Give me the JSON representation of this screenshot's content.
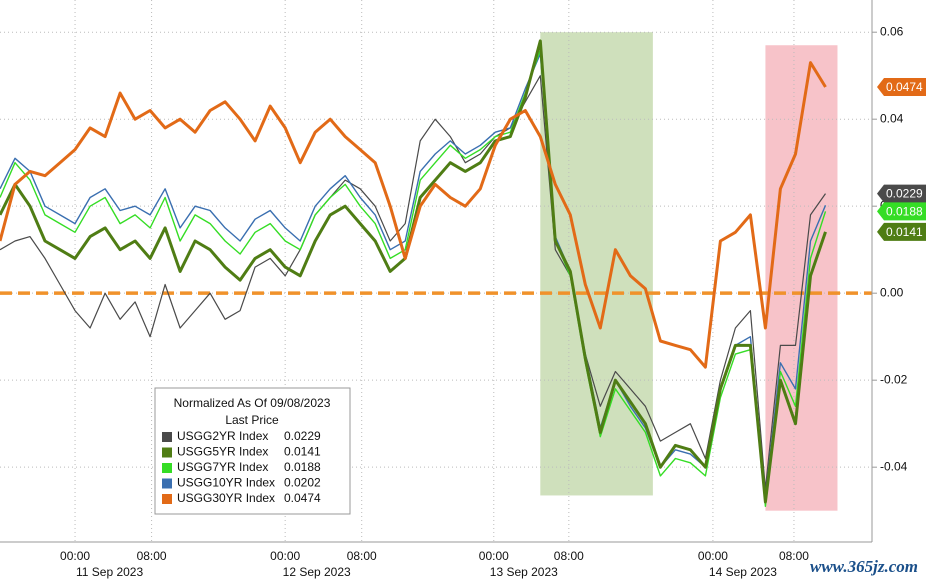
{
  "chart_data": {
    "type": "line",
    "legend_title": "Normalized As Of 09/08/2023",
    "legend_subtitle": "Last Price",
    "watermark": "www.365jz.com",
    "x": [
      0,
      1,
      2,
      3,
      4,
      5,
      6,
      7,
      8,
      9,
      10,
      11,
      12,
      13,
      14,
      15,
      16,
      17,
      18,
      19,
      20,
      21,
      22,
      23,
      24,
      25,
      26,
      27,
      28,
      29,
      30,
      31,
      32,
      33,
      34,
      35,
      36,
      37,
      38,
      39,
      40,
      41,
      42,
      43,
      44,
      45,
      46,
      47,
      48,
      49,
      50,
      51,
      52,
      53,
      54,
      55
    ],
    "xlim": [
      0,
      58.1
    ],
    "xticks": [
      {
        "value": 5,
        "label": "00:00"
      },
      {
        "value": 10.1,
        "label": "08:00"
      },
      {
        "value": 19,
        "label": "00:00"
      },
      {
        "value": 24.1,
        "label": "08:00"
      },
      {
        "value": 32.9,
        "label": "00:00"
      },
      {
        "value": 37.9,
        "label": "08:00"
      },
      {
        "value": 47.5,
        "label": "00:00"
      },
      {
        "value": 52.9,
        "label": "08:00"
      }
    ],
    "date_ticks": [
      {
        "value": 7.3,
        "label": "11 Sep 2023"
      },
      {
        "value": 21.1,
        "label": "12 Sep 2023"
      },
      {
        "value": 34.9,
        "label": "13 Sep 2023"
      },
      {
        "value": 49.5,
        "label": "14 Sep 2023"
      }
    ],
    "ylim": [
      -0.0572,
      0.0674
    ],
    "yticks": [
      0.06,
      0.04,
      0.02,
      {
        "value": 0,
        "label": "0.00"
      },
      -0.02,
      -0.04
    ],
    "grid": true,
    "reference_line": {
      "value": 0,
      "color": "#f0922b"
    },
    "shaded_regions": [
      {
        "xlim": [
          36,
          43.5
        ],
        "ylim": [
          -0.0465,
          0.06
        ],
        "color": "#c7dbb0"
      },
      {
        "xlim": [
          51,
          55.8
        ],
        "ylim": [
          -0.05,
          0.057
        ],
        "color": "#f6b8bf"
      }
    ],
    "series": [
      {
        "name": "USGG2YR Index",
        "color": "#4a4a4a",
        "width": 1.2,
        "tag": true,
        "values": [
          0.01,
          0.012,
          0.013,
          0.008,
          0.002,
          -0.004,
          -0.008,
          0.0,
          -0.006,
          -0.002,
          -0.01,
          0.002,
          -0.008,
          -0.004,
          0.0,
          -0.006,
          -0.004,
          0.006,
          0.008,
          0.004,
          0.01,
          0.018,
          0.022,
          0.026,
          0.024,
          0.02,
          0.012,
          0.016,
          0.035,
          0.04,
          0.036,
          0.03,
          0.032,
          0.036,
          0.038,
          0.044,
          0.05,
          0.01,
          0.004,
          -0.014,
          -0.026,
          -0.018,
          -0.022,
          -0.026,
          -0.034,
          -0.032,
          -0.03,
          -0.038,
          -0.02,
          -0.008,
          -0.004,
          -0.045,
          -0.012,
          -0.012,
          0.018,
          0.0229
        ]
      },
      {
        "name": "USGG5YR Index",
        "color": "#4f7d14",
        "width": 3,
        "tag": true,
        "values": [
          0.018,
          0.025,
          0.02,
          0.012,
          0.01,
          0.008,
          0.013,
          0.015,
          0.01,
          0.012,
          0.008,
          0.015,
          0.005,
          0.012,
          0.01,
          0.006,
          0.003,
          0.008,
          0.01,
          0.006,
          0.004,
          0.012,
          0.018,
          0.02,
          0.016,
          0.012,
          0.005,
          0.008,
          0.022,
          0.026,
          0.03,
          0.028,
          0.03,
          0.035,
          0.036,
          0.045,
          0.058,
          0.012,
          0.005,
          -0.015,
          -0.032,
          -0.02,
          -0.025,
          -0.03,
          -0.04,
          -0.035,
          -0.036,
          -0.04,
          -0.022,
          -0.012,
          -0.012,
          -0.048,
          -0.02,
          -0.03,
          0.004,
          0.0141
        ]
      },
      {
        "name": "USGG7YR Index",
        "color": "#35dd25",
        "width": 1.4,
        "tag": true,
        "values": [
          0.022,
          0.03,
          0.026,
          0.018,
          0.016,
          0.014,
          0.02,
          0.022,
          0.016,
          0.018,
          0.015,
          0.022,
          0.012,
          0.018,
          0.016,
          0.012,
          0.009,
          0.014,
          0.016,
          0.012,
          0.01,
          0.018,
          0.022,
          0.025,
          0.02,
          0.016,
          0.008,
          0.01,
          0.026,
          0.03,
          0.034,
          0.031,
          0.033,
          0.036,
          0.037,
          0.046,
          0.056,
          0.012,
          0.004,
          -0.016,
          -0.033,
          -0.022,
          -0.027,
          -0.032,
          -0.042,
          -0.038,
          -0.039,
          -0.042,
          -0.024,
          -0.014,
          -0.013,
          -0.049,
          -0.018,
          -0.026,
          0.008,
          0.0188
        ]
      },
      {
        "name": "USGG10YR Index",
        "color": "#3a6fb0",
        "width": 1.4,
        "tag": false,
        "values": [
          0.024,
          0.031,
          0.028,
          0.02,
          0.018,
          0.016,
          0.022,
          0.024,
          0.019,
          0.02,
          0.018,
          0.024,
          0.015,
          0.02,
          0.019,
          0.015,
          0.012,
          0.017,
          0.019,
          0.015,
          0.012,
          0.02,
          0.024,
          0.027,
          0.022,
          0.018,
          0.01,
          0.012,
          0.028,
          0.032,
          0.035,
          0.032,
          0.034,
          0.037,
          0.038,
          0.047,
          0.055,
          0.013,
          0.005,
          -0.014,
          -0.031,
          -0.02,
          -0.026,
          -0.031,
          -0.04,
          -0.036,
          -0.037,
          -0.04,
          -0.022,
          -0.012,
          -0.01,
          -0.047,
          -0.016,
          -0.022,
          0.012,
          0.0202
        ]
      },
      {
        "name": "USGG30YR Index",
        "color": "#e26a17",
        "width": 3,
        "tag": true,
        "values": [
          0.012,
          0.025,
          0.028,
          0.027,
          0.03,
          0.033,
          0.038,
          0.036,
          0.046,
          0.04,
          0.042,
          0.038,
          0.04,
          0.037,
          0.042,
          0.044,
          0.04,
          0.035,
          0.043,
          0.038,
          0.03,
          0.037,
          0.04,
          0.036,
          0.033,
          0.03,
          0.02,
          0.008,
          0.02,
          0.025,
          0.022,
          0.02,
          0.024,
          0.034,
          0.04,
          0.042,
          0.036,
          0.025,
          0.018,
          0.002,
          -0.008,
          0.01,
          0.004,
          0.001,
          -0.011,
          -0.012,
          -0.013,
          -0.017,
          0.012,
          0.014,
          0.018,
          -0.008,
          0.024,
          0.032,
          0.053,
          0.0474
        ]
      }
    ]
  }
}
